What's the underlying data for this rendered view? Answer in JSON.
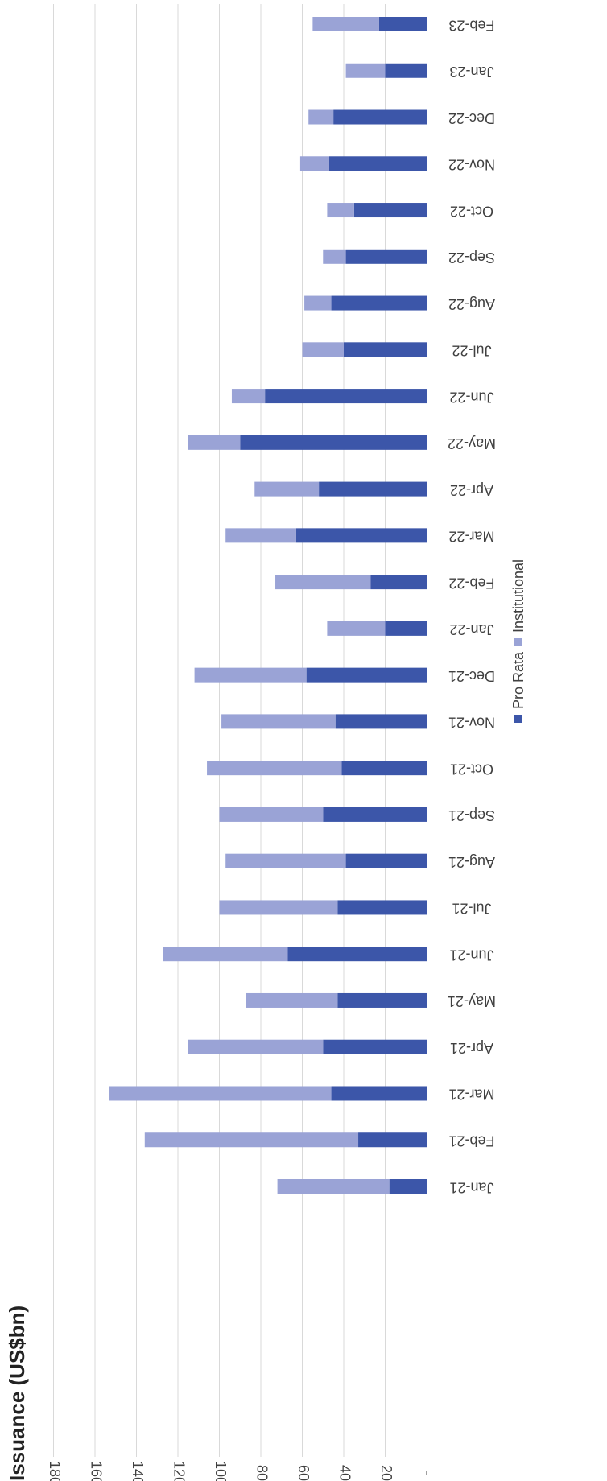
{
  "chart_data": {
    "type": "bar",
    "stacked": true,
    "orientation": "vertical-rotated",
    "title": "Issuance (US$bn)",
    "xlabel": "",
    "ylabel": "",
    "ylim": [
      0,
      180
    ],
    "y_tick_labels": [
      "-",
      "20",
      "40",
      "60",
      "80",
      "100",
      "120",
      "140",
      "160",
      "180"
    ],
    "y_tick_values": [
      0,
      20,
      40,
      60,
      80,
      100,
      120,
      140,
      160,
      180
    ],
    "grid": true,
    "legend_position": "bottom",
    "categories": [
      "Jan-21",
      "Feb-21",
      "Mar-21",
      "Apr-21",
      "May-21",
      "Jun-21",
      "Jul-21",
      "Aug-21",
      "Sep-21",
      "Oct-21",
      "Nov-21",
      "Dec-21",
      "Jan-22",
      "Feb-22",
      "Mar-22",
      "Apr-22",
      "May-22",
      "Jun-22",
      "Jul-22",
      "Aug-22",
      "Sep-22",
      "Oct-22",
      "Nov-22",
      "Dec-22",
      "Jan-23",
      "Feb-23"
    ],
    "series": [
      {
        "name": "Pro Rata",
        "color": "#3c56a9",
        "values": [
          18,
          33,
          46,
          50,
          43,
          67,
          43,
          39,
          50,
          41,
          44,
          58,
          20,
          27,
          63,
          52,
          90,
          78,
          40,
          46,
          39,
          35,
          47,
          45,
          20,
          23
        ]
      },
      {
        "name": "Institutional",
        "color": "#9aa3d6",
        "values": [
          54,
          103,
          107,
          65,
          44,
          60,
          57,
          58,
          50,
          65,
          55,
          54,
          28,
          46,
          34,
          31,
          25,
          16,
          20,
          13,
          11,
          13,
          14,
          12,
          19,
          32
        ]
      }
    ]
  }
}
